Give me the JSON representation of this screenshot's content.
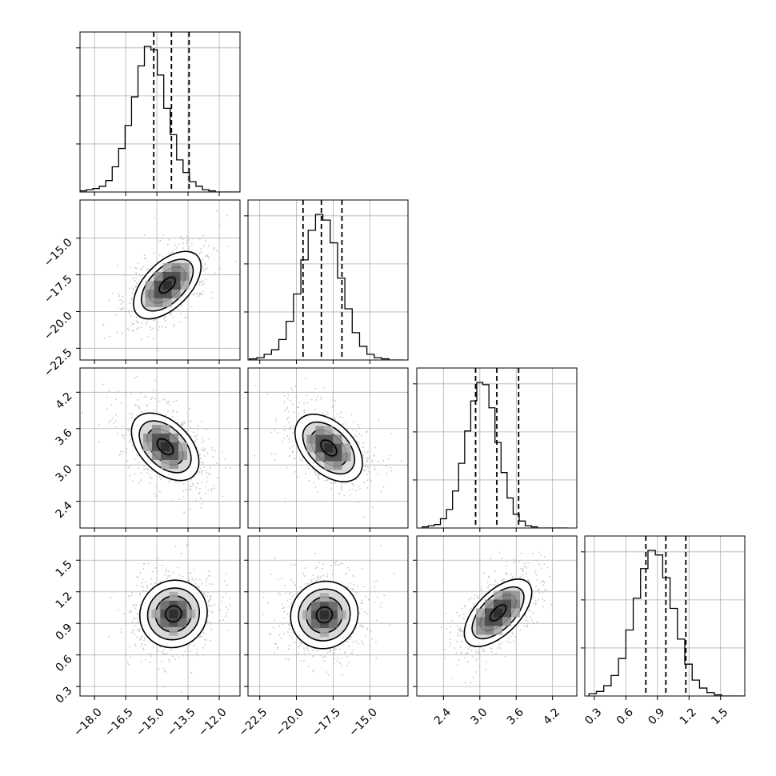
{
  "chart_data": {
    "type": "corner",
    "title": "",
    "parameters": [
      {
        "range": [
          -18.7,
          -11.0
        ],
        "x_ticks": [
          "−18.0",
          "−16.5",
          "−15.0",
          "−13.5",
          "−12.0"
        ],
        "x_tick_values": [
          -18.0,
          -16.5,
          -15.0,
          -13.5,
          -12.0
        ],
        "y_ticks": [],
        "y_tick_values": []
      },
      {
        "range": [
          -23.3,
          -12.4
        ],
        "x_ticks": [
          "−22.5",
          "−20.0",
          "−17.5",
          "−15.0"
        ],
        "x_tick_values": [
          -22.5,
          -20.0,
          -17.5,
          -15.0
        ],
        "y_ticks": [
          "−15.0",
          "−17.5",
          "−20.0",
          "−22.5"
        ],
        "y_tick_values": [
          -15.0,
          -17.5,
          -20.0,
          -22.5
        ]
      },
      {
        "range": [
          1.96,
          4.6
        ],
        "x_ticks": [
          "2.4",
          "3.0",
          "3.6",
          "4.2"
        ],
        "x_tick_values": [
          2.4,
          3.0,
          3.6,
          4.2
        ],
        "y_ticks": [
          "4.2",
          "3.6",
          "3.0",
          "2.4"
        ],
        "y_tick_values": [
          4.2,
          3.6,
          3.0,
          2.4
        ]
      },
      {
        "range": [
          0.21,
          1.73
        ],
        "x_ticks": [
          "0.3",
          "0.6",
          "0.9",
          "1.2",
          "1.5"
        ],
        "x_tick_values": [
          0.3,
          0.6,
          0.9,
          1.2,
          1.5
        ],
        "y_ticks": [
          "1.5",
          "1.2",
          "0.9",
          "0.6",
          "0.3"
        ],
        "y_tick_values": [
          1.5,
          1.2,
          0.9,
          0.6,
          0.3
        ]
      }
    ],
    "marginals": [
      {
        "bin_edges": [
          -18.7,
          -18.39,
          -18.08,
          -17.77,
          -17.46,
          -17.15,
          -16.84,
          -16.53,
          -16.22,
          -15.91,
          -15.6,
          -15.29,
          -14.98,
          -14.67,
          -14.36,
          -14.05,
          -13.74,
          -13.43,
          -13.12,
          -12.81,
          -12.5,
          -12.19,
          -11.88,
          -11.57,
          -11.26,
          -10.95
        ],
        "counts": [
          1,
          2,
          3,
          5,
          10,
          22,
          38,
          58,
          83,
          110,
          127,
          124,
          102,
          73,
          50,
          28,
          17,
          9,
          5,
          2,
          1,
          0,
          0,
          0,
          0
        ],
        "quantiles": [
          -15.15,
          -14.3,
          -13.45
        ]
      },
      {
        "bin_edges": [
          -23.2,
          -22.7,
          -22.2,
          -21.7,
          -21.2,
          -20.7,
          -20.2,
          -19.7,
          -19.2,
          -18.7,
          -18.2,
          -17.7,
          -17.2,
          -16.7,
          -16.2,
          -15.7,
          -15.2,
          -14.7,
          -14.2,
          -13.7,
          -13.2,
          -12.7
        ],
        "counts": [
          1,
          2,
          5,
          9,
          18,
          34,
          58,
          88,
          114,
          128,
          123,
          103,
          72,
          45,
          24,
          12,
          5,
          2,
          1,
          0,
          0
        ],
        "quantiles": [
          -19.55,
          -18.3,
          -16.9
        ]
      },
      {
        "bin_edges": [
          2.05,
          2.15,
          2.25,
          2.35,
          2.45,
          2.55,
          2.65,
          2.75,
          2.85,
          2.95,
          3.05,
          3.15,
          3.25,
          3.35,
          3.45,
          3.55,
          3.65,
          3.75,
          3.85,
          3.95,
          4.05,
          4.15,
          4.25,
          4.35,
          4.45
        ],
        "counts": [
          1,
          2,
          3,
          8,
          16,
          32,
          56,
          84,
          110,
          126,
          124,
          104,
          74,
          48,
          26,
          12,
          6,
          2,
          1,
          0,
          0,
          0,
          0,
          0
        ],
        "quantiles": [
          2.93,
          3.28,
          3.64
        ]
      },
      {
        "bin_edges": [
          0.25,
          0.32,
          0.39,
          0.46,
          0.53,
          0.6,
          0.67,
          0.74,
          0.81,
          0.88,
          0.95,
          1.02,
          1.09,
          1.16,
          1.23,
          1.3,
          1.37,
          1.44,
          1.51,
          1.58,
          1.65,
          1.72
        ],
        "counts": [
          2,
          4,
          9,
          18,
          33,
          58,
          86,
          112,
          128,
          124,
          104,
          77,
          50,
          28,
          14,
          7,
          3,
          1,
          0,
          0,
          0
        ],
        "quantiles": [
          0.79,
          0.98,
          1.17
        ]
      }
    ],
    "pairs": [
      {
        "x": 0,
        "y": 1,
        "correlation": 0.55,
        "contour_levels": [
          0.5,
          1.0,
          1.5,
          2.0
        ],
        "density_peak": [
          -14.5,
          -18.2
        ]
      },
      {
        "x": 0,
        "y": 2,
        "correlation": -0.45,
        "contour_levels": [
          0.5,
          1.0,
          1.5,
          2.0
        ],
        "density_peak": [
          -14.6,
          3.3
        ]
      },
      {
        "x": 1,
        "y": 2,
        "correlation": -0.45,
        "contour_levels": [
          0.5,
          1.0,
          1.5,
          2.0
        ],
        "density_peak": [
          -17.8,
          3.28
        ]
      },
      {
        "x": 0,
        "y": 3,
        "correlation": 0.05,
        "contour_levels": [
          0.5,
          1.0,
          1.5,
          2.0
        ],
        "density_peak": [
          -14.2,
          0.99
        ]
      },
      {
        "x": 1,
        "y": 3,
        "correlation": 0.05,
        "contour_levels": [
          0.5,
          1.0,
          1.5,
          2.0
        ],
        "density_peak": [
          -18.1,
          0.98
        ]
      },
      {
        "x": 2,
        "y": 3,
        "correlation": 0.6,
        "contour_levels": [
          0.5,
          1.0,
          1.5,
          2.0
        ],
        "density_peak": [
          3.3,
          1.0
        ]
      }
    ],
    "grid": true,
    "colors": {
      "line": "#000000",
      "scatter": "#c8c8c8",
      "grid": "#b0b0b0"
    }
  }
}
